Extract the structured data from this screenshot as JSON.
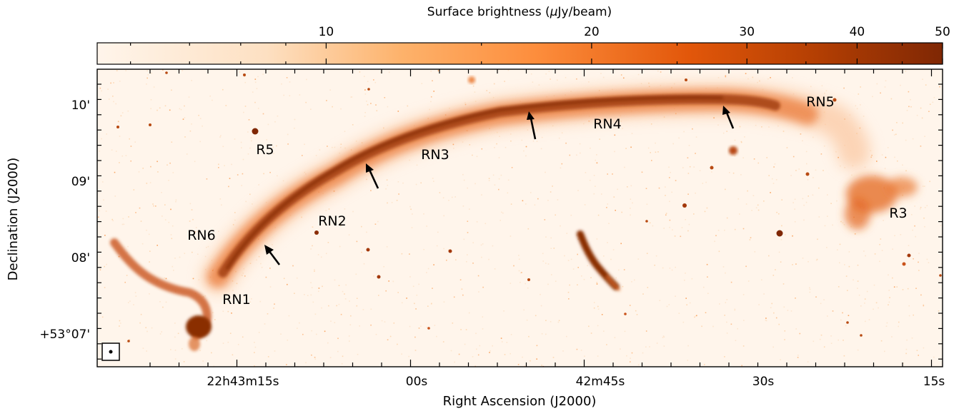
{
  "chart_data": {
    "type": "heatmap",
    "colorbar": {
      "label_prefix": "Surface brightness (",
      "label_mu": "μ",
      "label_suffix": "Jy/beam)",
      "ticks": [
        "10",
        "20",
        "30",
        "40",
        "50"
      ],
      "tick_values": [
        10,
        20,
        30,
        40,
        50
      ],
      "scale": "log",
      "range": [
        5.5,
        50
      ],
      "colormap": [
        "#fff5eb",
        "#fdd0a2",
        "#fd8d3c",
        "#d94801",
        "#7f2704"
      ]
    },
    "xlabel": "Right Ascension (J2000)",
    "ylabel": "Declination (J2000)",
    "xticks": [
      "22h43m15s",
      "00s",
      "42m45s",
      "30s",
      "15s"
    ],
    "yticks": [
      "10'",
      "09'",
      "08'",
      "+53°07'"
    ],
    "labels": [
      "RN5",
      "RN4",
      "RN3",
      "R5",
      "RN2",
      "RN6",
      "RN1",
      "R3"
    ],
    "arrows": 4,
    "beam": "•"
  }
}
